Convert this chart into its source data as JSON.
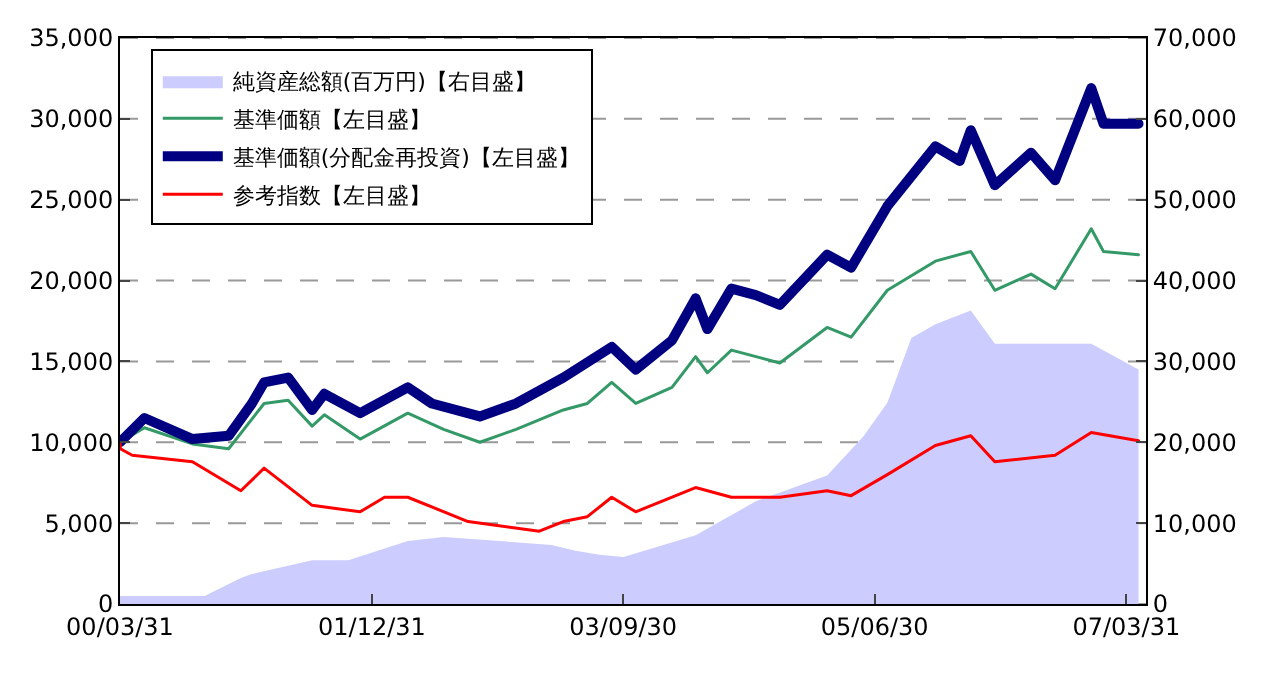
{
  "chart_data": {
    "type": "line",
    "xlim": [
      "2000-03-31",
      "2007-05-20"
    ],
    "xticks": [
      {
        "value": "2000-03-31",
        "label": "00/03/31"
      },
      {
        "value": "2001-12-31",
        "label": "01/12/31"
      },
      {
        "value": "2003-09-30",
        "label": "03/09/30"
      },
      {
        "value": "2005-06-30",
        "label": "05/06/30"
      },
      {
        "value": "2007-03-31",
        "label": "07/03/31"
      }
    ],
    "ylim": [
      0,
      35000
    ],
    "yticks": [
      {
        "value": 0,
        "label": "0"
      },
      {
        "value": 5000,
        "label": "5,000"
      },
      {
        "value": 10000,
        "label": "10,000"
      },
      {
        "value": 15000,
        "label": "15,000"
      },
      {
        "value": 20000,
        "label": "20,000"
      },
      {
        "value": 25000,
        "label": "25,000"
      },
      {
        "value": 30000,
        "label": "30,000"
      },
      {
        "value": 35000,
        "label": "35,000"
      }
    ],
    "y2lim": [
      0,
      70000
    ],
    "y2ticks": [
      {
        "value": 0,
        "label": "0"
      },
      {
        "value": 10000,
        "label": "10,000"
      },
      {
        "value": 20000,
        "label": "20,000"
      },
      {
        "value": 30000,
        "label": "30,000"
      },
      {
        "value": 40000,
        "label": "40,000"
      },
      {
        "value": 50000,
        "label": "50,000"
      },
      {
        "value": 60000,
        "label": "60,000"
      },
      {
        "value": 70000,
        "label": "70,000"
      }
    ],
    "grid": "y",
    "legend": "top left",
    "series": [
      {
        "name": "純資産総額(百万円)【右目盛】",
        "type": "area",
        "axis": "y2",
        "color": "#ccccff",
        "x": [
          "2000-03-31",
          "2000-11",
          "2001-02",
          "2001-03",
          "2001-08",
          "2001-11",
          "2002-04",
          "2002-07",
          "2003-04",
          "2003-06",
          "2003-08",
          "2003-10",
          "2004-04",
          "2004-09",
          "2005-03",
          "2005-06",
          "2005-08",
          "2005-10",
          "2005-12",
          "2006-03",
          "2006-05",
          "2006-10",
          "2007-01",
          "2007-05"
        ],
        "values": [
          1000,
          1000,
          3200,
          3700,
          5400,
          5400,
          7800,
          8300,
          7300,
          6600,
          6100,
          5800,
          8500,
          12700,
          15900,
          20700,
          24900,
          32900,
          34600,
          36300,
          32200,
          32200,
          32200,
          29000
        ]
      },
      {
        "name": "基準価額【左目盛】",
        "color": "#339966",
        "x": [
          "2000-03-31",
          "2000-06",
          "2000-10",
          "2001-01",
          "2001-04",
          "2001-06",
          "2001-08",
          "2001-09",
          "2001-12",
          "2002-04",
          "2002-07",
          "2002-10",
          "2003-01",
          "2003-05",
          "2003-07",
          "2003-09",
          "2003-11",
          "2004-02",
          "2004-04",
          "2004-05",
          "2004-07",
          "2004-11",
          "2005-03",
          "2005-05",
          "2005-08",
          "2005-12",
          "2006-03",
          "2006-05",
          "2006-08",
          "2006-10",
          "2007-01",
          "2007-02",
          "2007-05"
        ],
        "values": [
          10000,
          10900,
          9900,
          9600,
          12400,
          12600,
          11000,
          11700,
          10200,
          11800,
          10800,
          10000,
          10800,
          12000,
          12400,
          13700,
          12400,
          13400,
          15300,
          14300,
          15700,
          14900,
          17100,
          16500,
          19400,
          21200,
          21800,
          19400,
          20400,
          19500,
          23200,
          21800,
          21600
        ]
      },
      {
        "name": "基準価額(分配金再投資)【左目盛】",
        "color": "#000080",
        "x": [
          "2000-03-31",
          "2000-06",
          "2000-10",
          "2001-01",
          "2001-03",
          "2001-04",
          "2001-06",
          "2001-08",
          "2001-09",
          "2001-12",
          "2002-04",
          "2002-06",
          "2002-10",
          "2003-01",
          "2003-05",
          "2003-09",
          "2003-11",
          "2004-02",
          "2004-04",
          "2004-05",
          "2004-07",
          "2004-09",
          "2004-11",
          "2005-03",
          "2005-05",
          "2005-08",
          "2005-12",
          "2006-02",
          "2006-03",
          "2006-05",
          "2006-08",
          "2006-10",
          "2007-01",
          "2007-02",
          "2007-05"
        ],
        "values": [
          10000,
          11500,
          10200,
          10400,
          12400,
          13700,
          14000,
          12000,
          13000,
          11800,
          13400,
          12400,
          11600,
          12400,
          14000,
          15900,
          14500,
          16300,
          18900,
          17000,
          19500,
          19100,
          18500,
          21600,
          20800,
          24600,
          28300,
          27400,
          29300,
          25900,
          27900,
          26200,
          31900,
          29700,
          29700
        ]
      },
      {
        "name": "参考指数【左目盛】",
        "color": "#ff0000",
        "x": [
          "2000-03-31",
          "2000-04",
          "2000-05",
          "2000-10",
          "2001-02",
          "2001-04",
          "2001-08",
          "2001-12",
          "2002-02",
          "2002-04",
          "2002-09",
          "2003-03",
          "2003-05",
          "2003-07",
          "2003-09",
          "2003-11",
          "2004-04",
          "2004-07",
          "2004-11",
          "2005-03",
          "2005-05",
          "2005-08",
          "2005-12",
          "2006-03",
          "2006-05",
          "2006-10",
          "2007-01",
          "2007-05"
        ],
        "values": [
          10000,
          9600,
          9200,
          8800,
          7000,
          8400,
          6100,
          5700,
          6600,
          6600,
          5100,
          4500,
          5100,
          5400,
          6600,
          5700,
          7200,
          6600,
          6600,
          7000,
          6700,
          8000,
          9800,
          10400,
          8800,
          9200,
          10600,
          10100
        ]
      }
    ]
  }
}
